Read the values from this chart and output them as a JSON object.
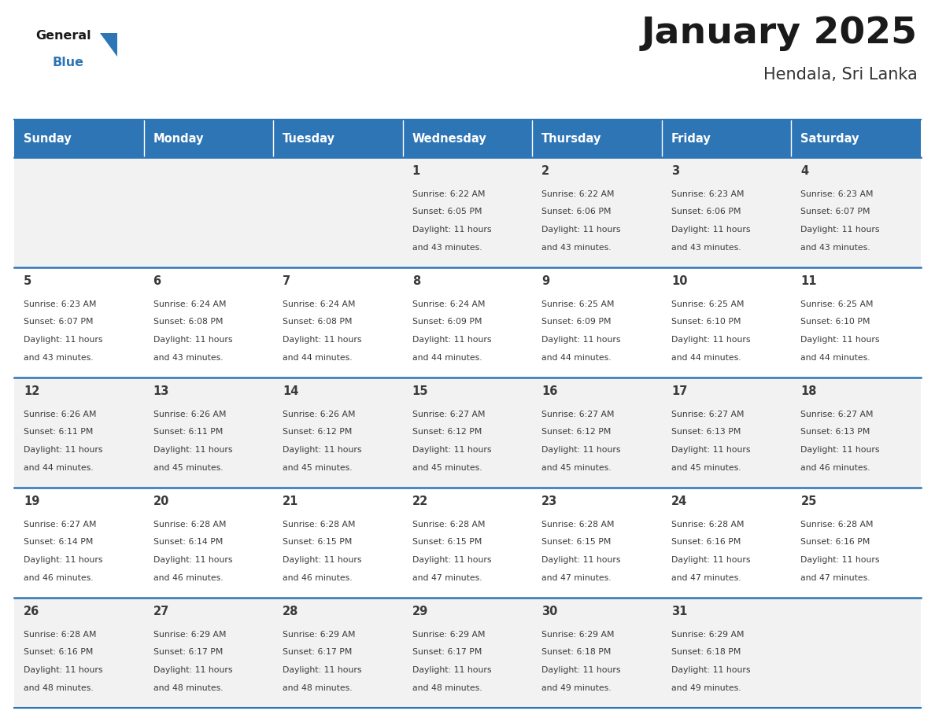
{
  "title": "January 2025",
  "subtitle": "Hendala, Sri Lanka",
  "days_of_week": [
    "Sunday",
    "Monday",
    "Tuesday",
    "Wednesday",
    "Thursday",
    "Friday",
    "Saturday"
  ],
  "header_bg": "#2E75B6",
  "header_text": "#FFFFFF",
  "cell_bg_odd": "#F2F2F2",
  "cell_bg_even": "#FFFFFF",
  "row_line_color": "#2E75B6",
  "text_color": "#3A3A3A",
  "calendar_data": [
    [
      null,
      null,
      null,
      {
        "day": 1,
        "sunrise": "6:22 AM",
        "sunset": "6:05 PM",
        "daylight": "11 hours\nand 43 minutes."
      },
      {
        "day": 2,
        "sunrise": "6:22 AM",
        "sunset": "6:06 PM",
        "daylight": "11 hours\nand 43 minutes."
      },
      {
        "day": 3,
        "sunrise": "6:23 AM",
        "sunset": "6:06 PM",
        "daylight": "11 hours\nand 43 minutes."
      },
      {
        "day": 4,
        "sunrise": "6:23 AM",
        "sunset": "6:07 PM",
        "daylight": "11 hours\nand 43 minutes."
      }
    ],
    [
      {
        "day": 5,
        "sunrise": "6:23 AM",
        "sunset": "6:07 PM",
        "daylight": "11 hours\nand 43 minutes."
      },
      {
        "day": 6,
        "sunrise": "6:24 AM",
        "sunset": "6:08 PM",
        "daylight": "11 hours\nand 43 minutes."
      },
      {
        "day": 7,
        "sunrise": "6:24 AM",
        "sunset": "6:08 PM",
        "daylight": "11 hours\nand 44 minutes."
      },
      {
        "day": 8,
        "sunrise": "6:24 AM",
        "sunset": "6:09 PM",
        "daylight": "11 hours\nand 44 minutes."
      },
      {
        "day": 9,
        "sunrise": "6:25 AM",
        "sunset": "6:09 PM",
        "daylight": "11 hours\nand 44 minutes."
      },
      {
        "day": 10,
        "sunrise": "6:25 AM",
        "sunset": "6:10 PM",
        "daylight": "11 hours\nand 44 minutes."
      },
      {
        "day": 11,
        "sunrise": "6:25 AM",
        "sunset": "6:10 PM",
        "daylight": "11 hours\nand 44 minutes."
      }
    ],
    [
      {
        "day": 12,
        "sunrise": "6:26 AM",
        "sunset": "6:11 PM",
        "daylight": "11 hours\nand 44 minutes."
      },
      {
        "day": 13,
        "sunrise": "6:26 AM",
        "sunset": "6:11 PM",
        "daylight": "11 hours\nand 45 minutes."
      },
      {
        "day": 14,
        "sunrise": "6:26 AM",
        "sunset": "6:12 PM",
        "daylight": "11 hours\nand 45 minutes."
      },
      {
        "day": 15,
        "sunrise": "6:27 AM",
        "sunset": "6:12 PM",
        "daylight": "11 hours\nand 45 minutes."
      },
      {
        "day": 16,
        "sunrise": "6:27 AM",
        "sunset": "6:12 PM",
        "daylight": "11 hours\nand 45 minutes."
      },
      {
        "day": 17,
        "sunrise": "6:27 AM",
        "sunset": "6:13 PM",
        "daylight": "11 hours\nand 45 minutes."
      },
      {
        "day": 18,
        "sunrise": "6:27 AM",
        "sunset": "6:13 PM",
        "daylight": "11 hours\nand 46 minutes."
      }
    ],
    [
      {
        "day": 19,
        "sunrise": "6:27 AM",
        "sunset": "6:14 PM",
        "daylight": "11 hours\nand 46 minutes."
      },
      {
        "day": 20,
        "sunrise": "6:28 AM",
        "sunset": "6:14 PM",
        "daylight": "11 hours\nand 46 minutes."
      },
      {
        "day": 21,
        "sunrise": "6:28 AM",
        "sunset": "6:15 PM",
        "daylight": "11 hours\nand 46 minutes."
      },
      {
        "day": 22,
        "sunrise": "6:28 AM",
        "sunset": "6:15 PM",
        "daylight": "11 hours\nand 47 minutes."
      },
      {
        "day": 23,
        "sunrise": "6:28 AM",
        "sunset": "6:15 PM",
        "daylight": "11 hours\nand 47 minutes."
      },
      {
        "day": 24,
        "sunrise": "6:28 AM",
        "sunset": "6:16 PM",
        "daylight": "11 hours\nand 47 minutes."
      },
      {
        "day": 25,
        "sunrise": "6:28 AM",
        "sunset": "6:16 PM",
        "daylight": "11 hours\nand 47 minutes."
      }
    ],
    [
      {
        "day": 26,
        "sunrise": "6:28 AM",
        "sunset": "6:16 PM",
        "daylight": "11 hours\nand 48 minutes."
      },
      {
        "day": 27,
        "sunrise": "6:29 AM",
        "sunset": "6:17 PM",
        "daylight": "11 hours\nand 48 minutes."
      },
      {
        "day": 28,
        "sunrise": "6:29 AM",
        "sunset": "6:17 PM",
        "daylight": "11 hours\nand 48 minutes."
      },
      {
        "day": 29,
        "sunrise": "6:29 AM",
        "sunset": "6:17 PM",
        "daylight": "11 hours\nand 48 minutes."
      },
      {
        "day": 30,
        "sunrise": "6:29 AM",
        "sunset": "6:18 PM",
        "daylight": "11 hours\nand 49 minutes."
      },
      {
        "day": 31,
        "sunrise": "6:29 AM",
        "sunset": "6:18 PM",
        "daylight": "11 hours\nand 49 minutes."
      },
      null
    ]
  ],
  "logo_triangle_color": "#2E75B6",
  "fig_width": 11.88,
  "fig_height": 9.18,
  "dpi": 100
}
